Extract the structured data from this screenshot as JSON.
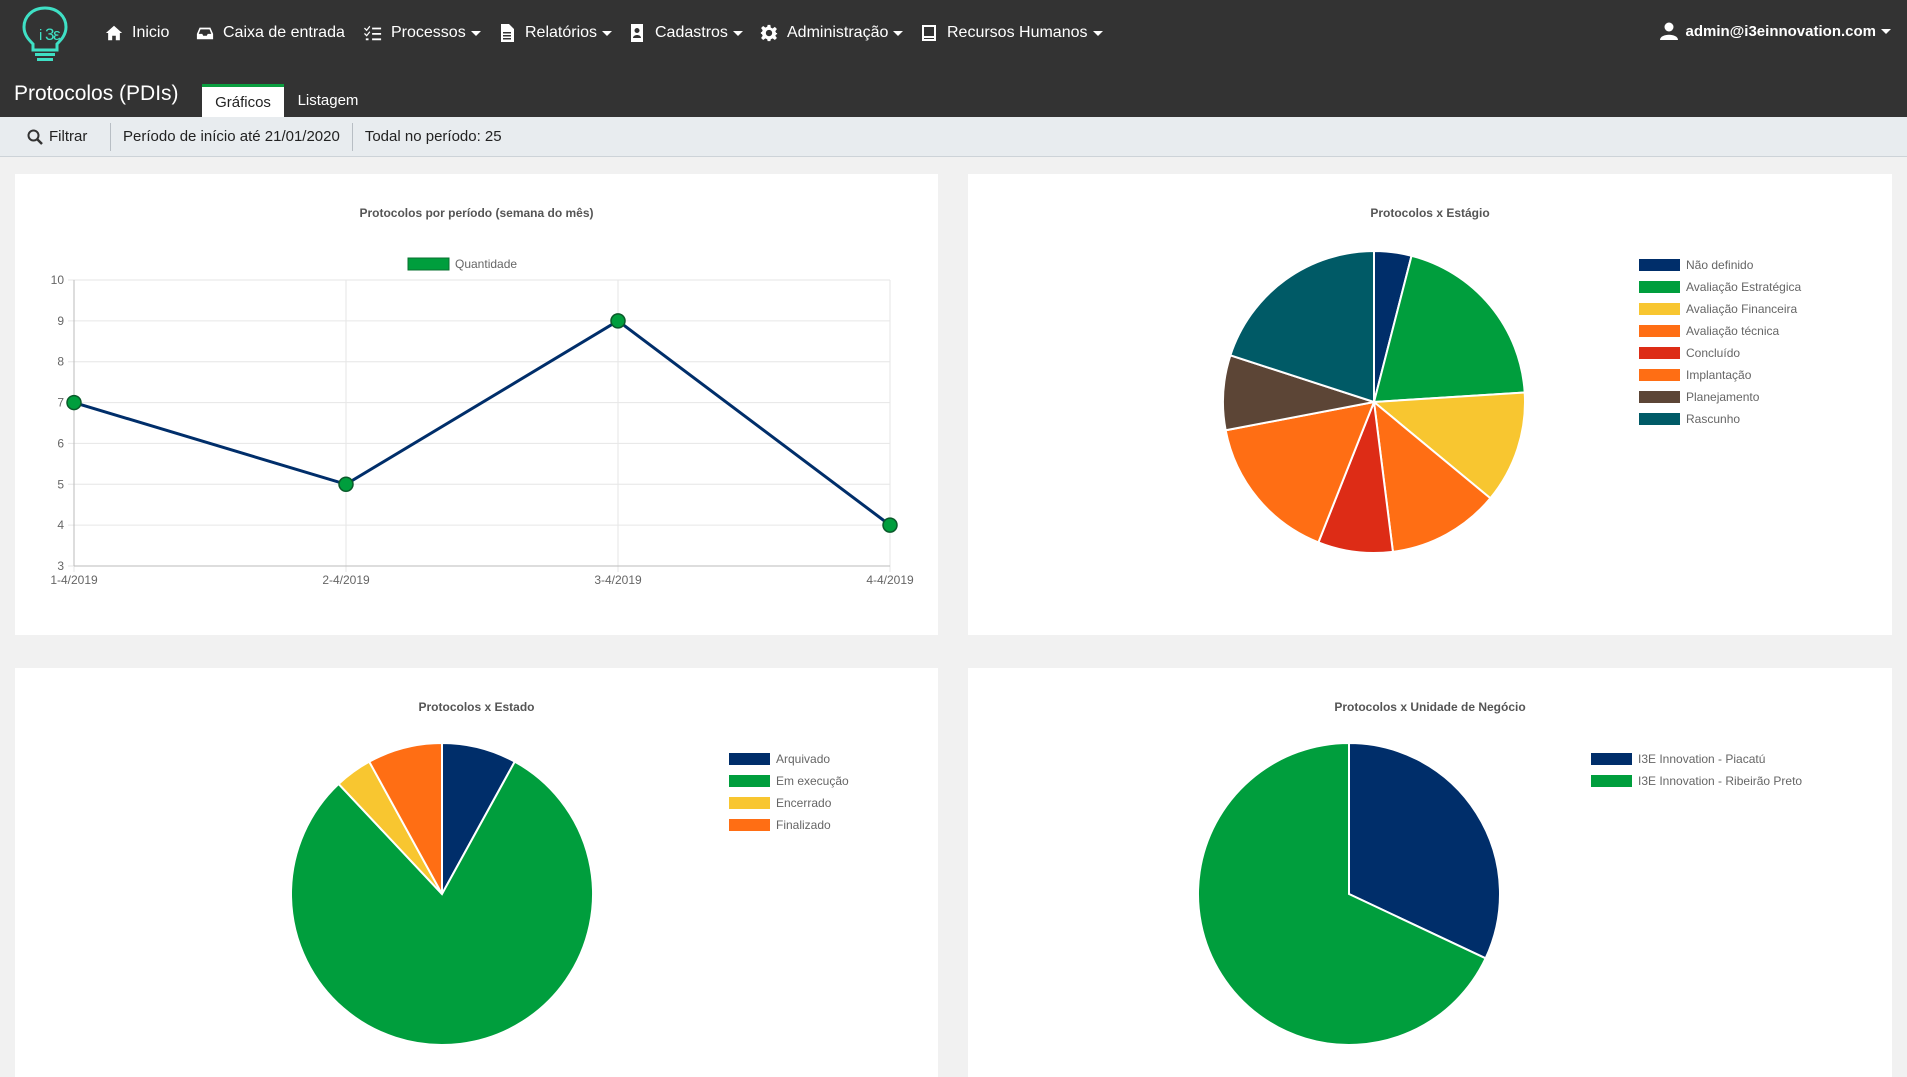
{
  "header": {
    "nav": [
      {
        "label": "Inicio",
        "icon": "home-icon"
      },
      {
        "label": "Caixa de entrada",
        "icon": "inbox-icon"
      },
      {
        "label": "Processos",
        "icon": "tasks-icon"
      },
      {
        "label": "Relatórios",
        "icon": "file-icon"
      },
      {
        "label": "Cadastros",
        "icon": "address-book-icon"
      },
      {
        "label": "Administração",
        "icon": "gear-icon"
      },
      {
        "label": "Recursos Humanos",
        "icon": "book-icon"
      }
    ],
    "user": "admin@i3einnovation.com",
    "page_title": "Protocolos (PDIs)",
    "tabs": [
      {
        "label": "Gráficos",
        "active": true
      },
      {
        "label": "Listagem",
        "active": false
      }
    ]
  },
  "filterbar": {
    "filter_label": "Filtrar",
    "period": "Período de início até 21/01/2020",
    "total": "Todal no período: 25"
  },
  "colors": {
    "header_bg": "#333333",
    "accent": "#0a9e3f",
    "navy": "#002e6a",
    "green": "#009e3d",
    "yellow": "#f8c630",
    "orange": "#ff6e14",
    "red": "#dd2c16",
    "brown": "#5c4536",
    "teal": "#005a66"
  },
  "chart_data": [
    {
      "type": "line",
      "title": "Protocolos por período (semana do mês)",
      "categories": [
        "1-4/2019",
        "2-4/2019",
        "3-4/2019",
        "4-4/2019"
      ],
      "series": [
        {
          "name": "Quantidade",
          "values": [
            7,
            5,
            9,
            4
          ],
          "color": "#002e6a",
          "point_color": "#009e3d",
          "legend_color": "#009e3d"
        }
      ],
      "ylim": [
        3,
        10
      ],
      "yticks": [
        3,
        4,
        5,
        6,
        7,
        8,
        9,
        10
      ],
      "grid": true,
      "legend": "top"
    },
    {
      "type": "pie",
      "title": "Protocolos x Estágio",
      "labels": [
        "Não definido",
        "Avaliação Estratégica",
        "Avaliação Financeira",
        "Avaliação técnica",
        "Concluído",
        "Implantação",
        "Planejamento",
        "Rascunho"
      ],
      "values": [
        1,
        5,
        3,
        3,
        2,
        4,
        2,
        5
      ],
      "colors": [
        "#002e6a",
        "#009e3d",
        "#f8c630",
        "#ff6e14",
        "#dd2c16",
        "#ff6e14",
        "#5c4536",
        "#005a66"
      ],
      "legend": "right"
    },
    {
      "type": "pie",
      "title": "Protocolos x Estado",
      "labels": [
        "Arquivado",
        "Em execução",
        "Encerrado",
        "Finalizado"
      ],
      "values": [
        2,
        20,
        1,
        2
      ],
      "colors": [
        "#002e6a",
        "#009e3d",
        "#f8c630",
        "#ff6e14"
      ],
      "legend": "right"
    },
    {
      "type": "pie",
      "title": "Protocolos x Unidade de Negócio",
      "labels": [
        "I3E Innovation - Piacatú",
        "I3E Innovation - Ribeirão Preto"
      ],
      "values": [
        8,
        17
      ],
      "colors": [
        "#002e6a",
        "#009e3d"
      ],
      "legend": "right"
    }
  ]
}
